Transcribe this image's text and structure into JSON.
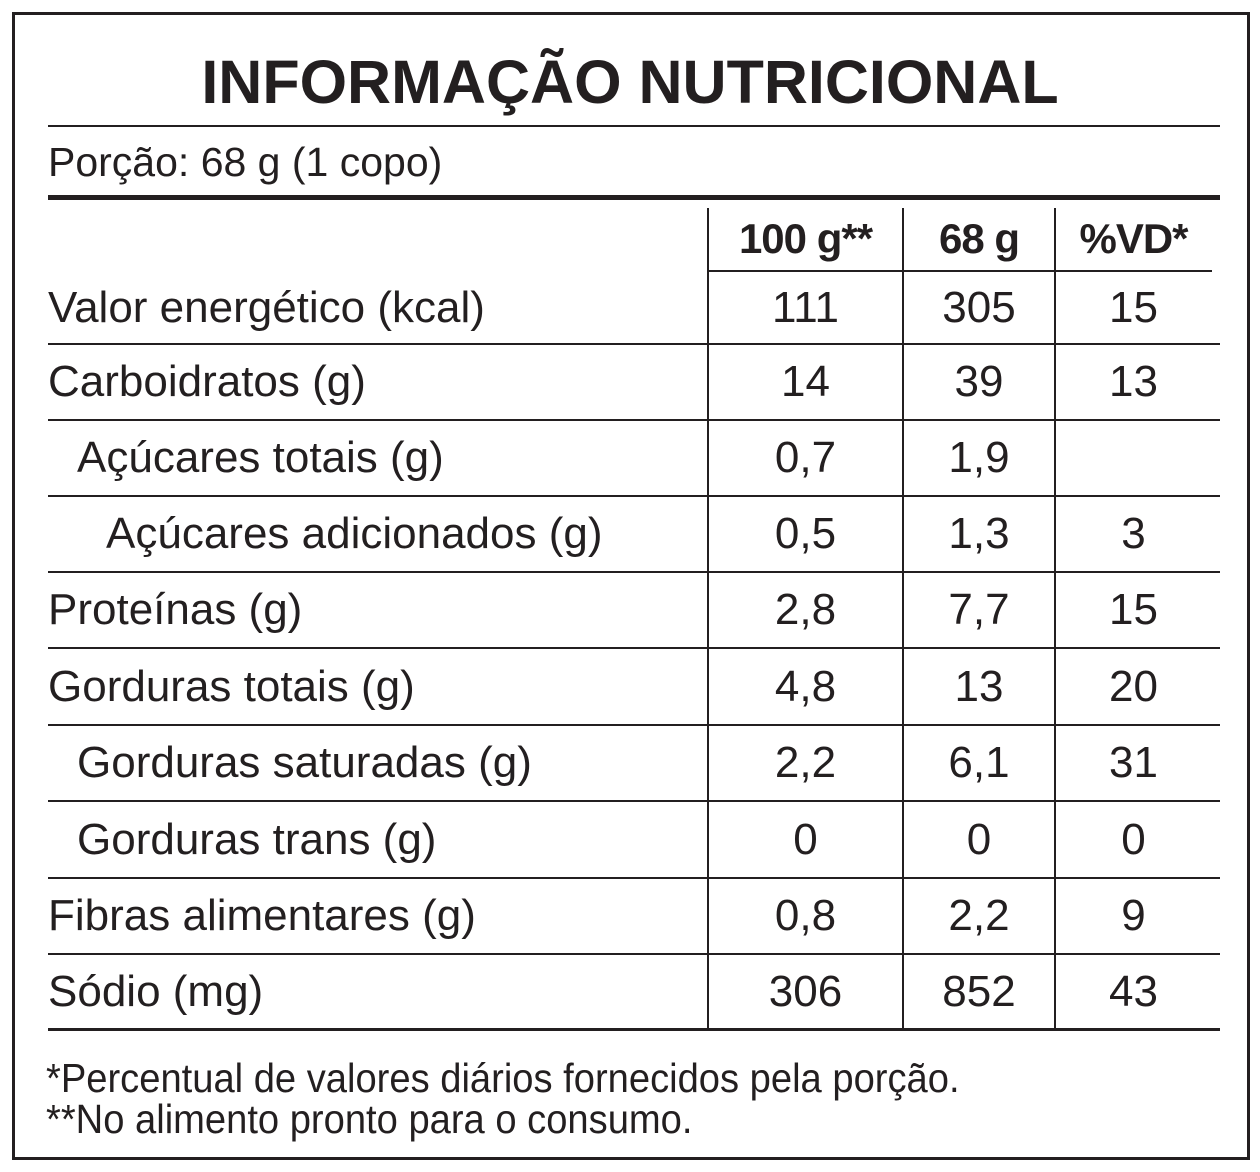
{
  "title": "INFORMAÇÃO NUTRICIONAL",
  "serving": "Porção: 68 g (1 copo)",
  "table": {
    "header": [
      "100 g**",
      "68 g",
      "%VD*"
    ],
    "rows": [
      [
        "Valor energético (kcal)",
        "111",
        "305",
        "15"
      ],
      [
        "Carboidratos (g)",
        "14",
        "39",
        "13"
      ],
      [
        "Açúcares totais (g)",
        "0,7",
        "1,9",
        null
      ],
      [
        "Açúcares adicionados (g)",
        "0,5",
        "1,3",
        "3"
      ],
      [
        "Proteínas (g)",
        "2,8",
        "7,7",
        "15"
      ],
      [
        "Gorduras totais (g)",
        "4,8",
        "13",
        "20"
      ],
      [
        "Gorduras saturadas (g)",
        "2,2",
        "6,1",
        "31"
      ],
      [
        "Gorduras trans (g)",
        "0",
        "0",
        "0"
      ],
      [
        "Fibras alimentares (g)",
        "0,8",
        "2,2",
        "9"
      ],
      [
        "Sódio (mg)",
        "306",
        "852",
        "43"
      ]
    ]
  },
  "footnotes": [
    "*Percentual de valores diários fornecidos pela porção.",
    "**No alimento pronto para o consumo."
  ]
}
